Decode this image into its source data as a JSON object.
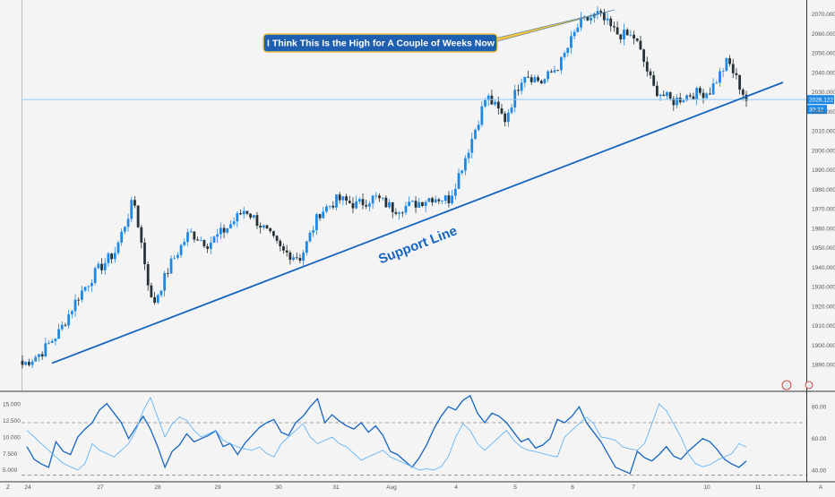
{
  "chart_data": [
    {
      "type": "candlestick",
      "title": "",
      "xlabel": "",
      "ylabel": "",
      "ylim": [
        1880,
        2075
      ],
      "y_ticks": [
        1890,
        1900,
        1910,
        1920,
        1930,
        1940,
        1950,
        1960,
        1970,
        1980,
        1990,
        2000,
        2010,
        2020,
        2030,
        2040,
        2050,
        2060,
        2070
      ],
      "y_tick_labels": [
        "1890.000",
        "1900.000",
        "1910.000",
        "1920.000",
        "1930.000",
        "1940.000",
        "1950.000",
        "1960.000",
        "1970.000",
        "1980.000",
        "1990.000",
        "2000.000",
        "2010.000",
        "2020.000",
        "2030.000",
        "2040.000",
        "2050.000",
        "2060.000",
        "2070.000"
      ],
      "x_ticks": [
        "24",
        "27",
        "28",
        "29",
        "30",
        "31",
        "Aug",
        "4",
        "5",
        "6",
        "7",
        "10",
        "11"
      ],
      "grid": false,
      "bull_color": "#1e88e5",
      "bear_color": "#263238",
      "annotations": {
        "callout": "I Think This Is the High for A Couple of Weeks Now",
        "support_label": "Support Line",
        "current_price": "2026.122",
        "countdown": "30:32"
      },
      "support_line": {
        "start": [
          "24",
          1886
        ],
        "end": [
          "11",
          2030
        ]
      },
      "horizontal_line": 2026.122,
      "session_closes": [
        {
          "x": "24",
          "close": 1890
        },
        {
          "x": "24",
          "close": 1896
        },
        {
          "x": "27",
          "close": 1907
        },
        {
          "x": "27",
          "close": 1925
        },
        {
          "x": "27",
          "close": 1938
        },
        {
          "x": "28",
          "close": 1948
        },
        {
          "x": "28",
          "close": 1975
        },
        {
          "x": "28",
          "close": 1920
        },
        {
          "x": "28",
          "close": 1942
        },
        {
          "x": "29",
          "close": 1958
        },
        {
          "x": "29",
          "close": 1952
        },
        {
          "x": "29",
          "close": 1960
        },
        {
          "x": "30",
          "close": 1970
        },
        {
          "x": "30",
          "close": 1960
        },
        {
          "x": "30",
          "close": 1948
        },
        {
          "x": "31",
          "close": 1945
        },
        {
          "x": "31",
          "close": 1968
        },
        {
          "x": "31",
          "close": 1975
        },
        {
          "x": "Aug",
          "close": 1972
        },
        {
          "x": "Aug",
          "close": 1976
        },
        {
          "x": "Aug",
          "close": 1970
        },
        {
          "x": "4",
          "close": 1972
        },
        {
          "x": "4",
          "close": 1976
        },
        {
          "x": "4",
          "close": 1975
        },
        {
          "x": "5",
          "close": 2000
        },
        {
          "x": "5",
          "close": 2028
        },
        {
          "x": "5",
          "close": 2016
        },
        {
          "x": "6",
          "close": 2040
        },
        {
          "x": "6",
          "close": 2035
        },
        {
          "x": "6",
          "close": 2045
        },
        {
          "x": "7",
          "close": 2065
        },
        {
          "x": "7",
          "close": 2070
        },
        {
          "x": "7",
          "close": 2060
        },
        {
          "x": "7",
          "close": 2058
        },
        {
          "x": "7",
          "close": 2032
        },
        {
          "x": "10",
          "close": 2025
        },
        {
          "x": "10",
          "close": 2029
        },
        {
          "x": "10",
          "close": 2030
        },
        {
          "x": "10",
          "close": 2046
        },
        {
          "x": "10",
          "close": 2026
        }
      ]
    },
    {
      "type": "line",
      "title": "",
      "xlabel": "",
      "ylabel": "",
      "left_ylim": [
        3.5,
        16.5
      ],
      "left_ticks": [
        "5.000",
        "7.500",
        "10.000",
        "12.500",
        "15.000"
      ],
      "right_ylim": [
        34,
        88
      ],
      "right_ticks": [
        "40.00",
        "60.00",
        "80.00"
      ],
      "reference_levels": [
        70,
        37
      ],
      "series": [
        {
          "axis": "right",
          "color": "#1565c0",
          "values": [
            55,
            47,
            44,
            42,
            58,
            52,
            50,
            61,
            66,
            70,
            78,
            82,
            76,
            70,
            60,
            67,
            74,
            66,
            55,
            42,
            52,
            56,
            63,
            58,
            60,
            62,
            65,
            55,
            57,
            50,
            57,
            62,
            67,
            70,
            72,
            64,
            62,
            70,
            74,
            80,
            85,
            70,
            75,
            71,
            68,
            66,
            70,
            64,
            68,
            62,
            52,
            50,
            46,
            42,
            48,
            56,
            66,
            74,
            80,
            78,
            84,
            87,
            76,
            70,
            76,
            74,
            70,
            64,
            58,
            60,
            54,
            56,
            60,
            72,
            70,
            74,
            80,
            70,
            64,
            58,
            50,
            42,
            40,
            38,
            52,
            48,
            46,
            50,
            55,
            49,
            47,
            52,
            56,
            60,
            58,
            53,
            47,
            44,
            42,
            46
          ]
        },
        {
          "axis": "left",
          "color": "#64b5f6",
          "values": [
            11,
            10,
            9,
            8,
            7,
            6,
            5.5,
            5,
            6,
            9,
            8,
            7.5,
            7,
            8,
            9,
            11,
            14,
            16,
            13,
            10,
            12,
            13,
            12.5,
            11,
            10,
            10.5,
            11,
            9.5,
            9,
            8.5,
            8.2,
            8,
            8.5,
            7.5,
            7,
            9,
            10,
            11,
            12,
            10,
            9,
            9.5,
            10,
            9,
            8.5,
            7.5,
            6.5,
            7,
            7.5,
            8,
            7,
            6.5,
            6,
            5.5,
            5,
            5.2,
            5,
            5.5,
            7,
            10,
            12,
            11,
            9,
            8,
            9,
            10,
            11,
            9.5,
            8.5,
            8,
            7.8,
            7.5,
            7.2,
            7,
            10,
            11,
            12,
            13,
            12,
            10,
            9.8,
            9.5,
            8.5,
            8.2,
            8,
            9,
            12,
            15,
            14,
            12,
            10,
            7.5,
            6,
            5.5,
            5.8,
            6.5,
            7,
            7.5,
            9,
            8.5
          ]
        }
      ]
    }
  ]
}
